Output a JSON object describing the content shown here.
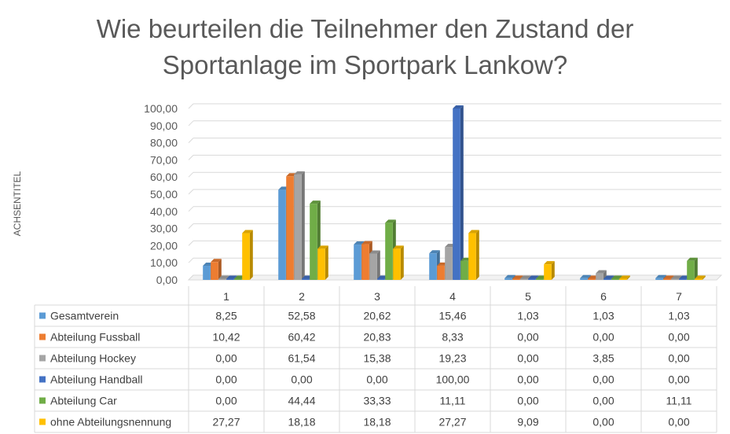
{
  "chart_data": {
    "type": "bar",
    "title_line1": "Wie beurteilen die Teilnehmer den Zustand der",
    "title_line2": "Sportanlage im Sportpark Lankow?",
    "ylabel": "ACHSENTITEL",
    "xlabel": "",
    "ylim": [
      0,
      100
    ],
    "yticks": [
      "0,00",
      "10,00",
      "20,00",
      "30,00",
      "40,00",
      "50,00",
      "60,00",
      "70,00",
      "80,00",
      "90,00",
      "100,00"
    ],
    "categories": [
      "1",
      "2",
      "3",
      "4",
      "5",
      "6",
      "7"
    ],
    "grid": true,
    "legend": "data-table",
    "series": [
      {
        "name": "Gesamtverein",
        "color": "#5b9bd5",
        "values": [
          8.25,
          52.58,
          20.62,
          15.46,
          1.03,
          1.03,
          1.03
        ],
        "labels": [
          "8,25",
          "52,58",
          "20,62",
          "15,46",
          "1,03",
          "1,03",
          "1,03"
        ]
      },
      {
        "name": "Abteilung Fussball",
        "color": "#ed7d31",
        "values": [
          10.42,
          60.42,
          20.83,
          8.33,
          0.0,
          0.0,
          0.0
        ],
        "labels": [
          "10,42",
          "60,42",
          "20,83",
          "8,33",
          "0,00",
          "0,00",
          "0,00"
        ]
      },
      {
        "name": "Abteilung Hockey",
        "color": "#a5a5a5",
        "values": [
          0.0,
          61.54,
          15.38,
          19.23,
          0.0,
          3.85,
          0.0
        ],
        "labels": [
          "0,00",
          "61,54",
          "15,38",
          "19,23",
          "0,00",
          "3,85",
          "0,00"
        ]
      },
      {
        "name": "Abteilung Handball",
        "color": "#4472c4",
        "values": [
          0.0,
          0.0,
          0.0,
          100.0,
          0.0,
          0.0,
          0.0
        ],
        "labels": [
          "0,00",
          "0,00",
          "0,00",
          "100,00",
          "0,00",
          "0,00",
          "0,00"
        ]
      },
      {
        "name": "Abteilung Car",
        "color": "#70ad47",
        "values": [
          0.0,
          44.44,
          33.33,
          11.11,
          0.0,
          0.0,
          11.11
        ],
        "labels": [
          "0,00",
          "44,44",
          "33,33",
          "11,11",
          "0,00",
          "0,00",
          "11,11"
        ]
      },
      {
        "name": "ohne Abteilungsnennung",
        "color": "#ffc000",
        "values": [
          27.27,
          18.18,
          18.18,
          27.27,
          9.09,
          0.0,
          0.0
        ],
        "labels": [
          "27,27",
          "18,18",
          "18,18",
          "27,27",
          "9,09",
          "0,00",
          "0,00"
        ]
      }
    ]
  }
}
